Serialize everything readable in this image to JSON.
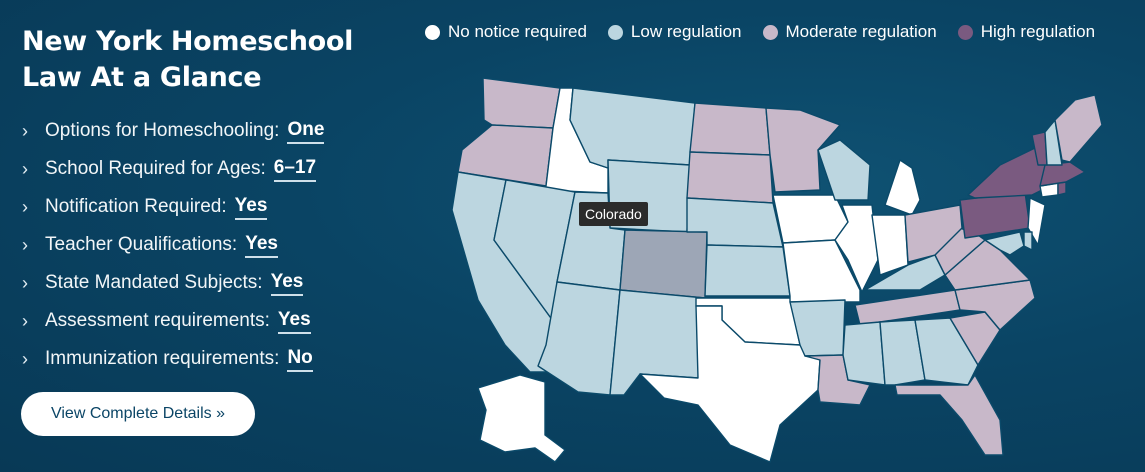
{
  "panel": {
    "title_line1": "New York Homeschool",
    "title_line2": "Law At a Glance",
    "facts": [
      {
        "label": "Options for Homeschooling:",
        "value": "One"
      },
      {
        "label": "School Required for Ages:",
        "value": "6–17"
      },
      {
        "label": "Notification Required:",
        "value": "Yes"
      },
      {
        "label": "Teacher Qualifications:",
        "value": "Yes"
      },
      {
        "label": "State Mandated Subjects:",
        "value": "Yes"
      },
      {
        "label": "Assessment requirements:",
        "value": "Yes"
      },
      {
        "label": "Immunization requirements:",
        "value": "No"
      }
    ],
    "chevron": "›",
    "cta_label": "View Complete Details »"
  },
  "legend": [
    {
      "label": "No notice required",
      "color": "#ffffff"
    },
    {
      "label": "Low regulation",
      "color": "#bcd6e0"
    },
    {
      "label": "Moderate regulation",
      "color": "#c8b8c9"
    },
    {
      "label": "High regulation",
      "color": "#7a5a80"
    }
  ],
  "hover_color": "#9da6b6",
  "tooltip": {
    "text": "Colorado"
  },
  "states": [
    {
      "name": "WA",
      "level": 2
    },
    {
      "name": "OR",
      "level": 2
    },
    {
      "name": "CA",
      "level": 1
    },
    {
      "name": "ID",
      "level": 0
    },
    {
      "name": "NV",
      "level": 1
    },
    {
      "name": "MT",
      "level": 1
    },
    {
      "name": "WY",
      "level": 1
    },
    {
      "name": "UT",
      "level": 1
    },
    {
      "name": "AZ",
      "level": 1
    },
    {
      "name": "CO",
      "level": 1,
      "hover": true
    },
    {
      "name": "NM",
      "level": 1
    },
    {
      "name": "ND",
      "level": 2
    },
    {
      "name": "SD",
      "level": 2
    },
    {
      "name": "NE",
      "level": 1
    },
    {
      "name": "KS",
      "level": 1
    },
    {
      "name": "OK",
      "level": 0
    },
    {
      "name": "TX",
      "level": 0
    },
    {
      "name": "MN",
      "level": 2
    },
    {
      "name": "IA",
      "level": 0
    },
    {
      "name": "MO",
      "level": 0
    },
    {
      "name": "AR",
      "level": 1
    },
    {
      "name": "LA",
      "level": 2
    },
    {
      "name": "WI",
      "level": 1
    },
    {
      "name": "IL",
      "level": 0
    },
    {
      "name": "MI",
      "level": 0
    },
    {
      "name": "IN",
      "level": 0
    },
    {
      "name": "KY",
      "level": 1
    },
    {
      "name": "TN",
      "level": 2
    },
    {
      "name": "MS",
      "level": 1
    },
    {
      "name": "AL",
      "level": 1
    },
    {
      "name": "GA",
      "level": 1
    },
    {
      "name": "FL",
      "level": 2
    },
    {
      "name": "SC",
      "level": 2
    },
    {
      "name": "NC",
      "level": 2
    },
    {
      "name": "VA",
      "level": 2
    },
    {
      "name": "WV",
      "level": 2
    },
    {
      "name": "OH",
      "level": 2
    },
    {
      "name": "PA",
      "level": 3
    },
    {
      "name": "NY",
      "level": 3
    },
    {
      "name": "NJ",
      "level": 0
    },
    {
      "name": "DE",
      "level": 1
    },
    {
      "name": "MD",
      "level": 1
    },
    {
      "name": "CT",
      "level": 0
    },
    {
      "name": "RI",
      "level": 3
    },
    {
      "name": "MA",
      "level": 3
    },
    {
      "name": "VT",
      "level": 3
    },
    {
      "name": "NH",
      "level": 1
    },
    {
      "name": "ME",
      "level": 2
    },
    {
      "name": "AK",
      "level": 0
    }
  ]
}
